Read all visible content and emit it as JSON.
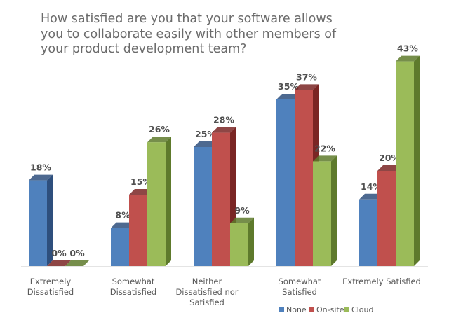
{
  "chart_data": {
    "type": "bar",
    "title": [
      "How satisfied are you that your software allows",
      "you to collaborate easily with other members of",
      "your product development team?"
    ],
    "categories": [
      [
        "Extremely",
        "Dissatisfied"
      ],
      [
        "Somewhat",
        "Dissatisfied"
      ],
      [
        "Neither",
        "Dissatisfied nor",
        "Satisfied"
      ],
      [
        "Somewhat",
        "Satisfied"
      ],
      [
        "Extremely Satisfied"
      ]
    ],
    "series": [
      {
        "name": "None",
        "values": [
          18,
          8,
          25,
          35,
          14
        ],
        "color": "#4f81bd",
        "color_side": "#2e4f7d"
      },
      {
        "name": "On-site",
        "values": [
          0,
          15,
          28,
          37,
          20
        ],
        "color": "#c0504d",
        "color_side": "#7a2624"
      },
      {
        "name": "Cloud",
        "values": [
          0,
          26,
          9,
          22,
          43
        ],
        "color": "#9bbb59",
        "color_side": "#5e7a2c"
      }
    ],
    "value_suffix": "%",
    "ylim": [
      0,
      45
    ],
    "legend_position": "bottom-right",
    "grid": false,
    "style": "3d-column"
  }
}
